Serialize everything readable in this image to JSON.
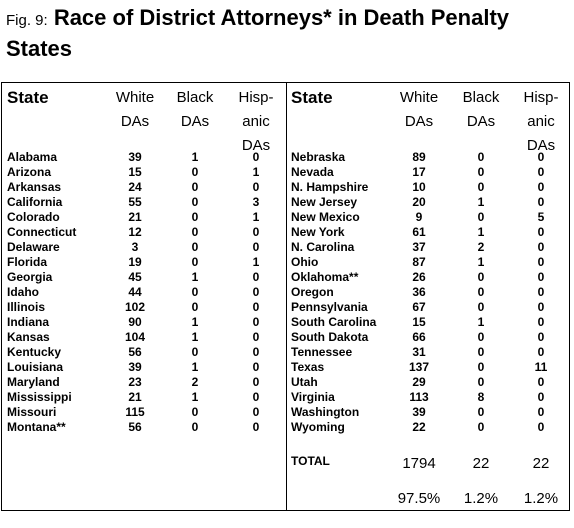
{
  "title": {
    "fig": "Fig. 9:",
    "text": "Race of District Attorneys* in Death Penalty States"
  },
  "headers": {
    "state": "State",
    "white": [
      "White",
      "DAs"
    ],
    "black": [
      "Black",
      "DAs"
    ],
    "hispanic": [
      "Hisp-",
      "anic",
      "DAs"
    ]
  },
  "left_rows": [
    {
      "state": "Alabama",
      "white": "39",
      "black": "1",
      "hispanic": "0"
    },
    {
      "state": "Arizona",
      "white": "15",
      "black": "0",
      "hispanic": "1"
    },
    {
      "state": "Arkansas",
      "white": "24",
      "black": "0",
      "hispanic": "0"
    },
    {
      "state": "California",
      "white": "55",
      "black": "0",
      "hispanic": "3"
    },
    {
      "state": "Colorado",
      "white": "21",
      "black": "0",
      "hispanic": "1"
    },
    {
      "state": "Connecticut",
      "white": "12",
      "black": "0",
      "hispanic": "0"
    },
    {
      "state": "Delaware",
      "white": "3",
      "black": "0",
      "hispanic": "0"
    },
    {
      "state": "Florida",
      "white": "19",
      "black": "0",
      "hispanic": "1"
    },
    {
      "state": "Georgia",
      "white": "45",
      "black": "1",
      "hispanic": "0"
    },
    {
      "state": "Idaho",
      "white": "44",
      "black": "0",
      "hispanic": "0"
    },
    {
      "state": "Illinois",
      "white": "102",
      "black": "0",
      "hispanic": "0"
    },
    {
      "state": "Indiana",
      "white": "90",
      "black": "1",
      "hispanic": "0"
    },
    {
      "state": "Kansas",
      "white": "104",
      "black": "1",
      "hispanic": "0"
    },
    {
      "state": "Kentucky",
      "white": "56",
      "black": "0",
      "hispanic": "0"
    },
    {
      "state": "Louisiana",
      "white": "39",
      "black": "1",
      "hispanic": "0"
    },
    {
      "state": "Maryland",
      "white": "23",
      "black": "2",
      "hispanic": "0"
    },
    {
      "state": "Mississippi",
      "white": "21",
      "black": "1",
      "hispanic": "0"
    },
    {
      "state": "Missouri",
      "white": "115",
      "black": "0",
      "hispanic": "0"
    },
    {
      "state": "Montana**",
      "white": "56",
      "black": "0",
      "hispanic": "0"
    }
  ],
  "right_rows": [
    {
      "state": "Nebraska",
      "white": "89",
      "black": "0",
      "hispanic": "0"
    },
    {
      "state": "Nevada",
      "white": "17",
      "black": "0",
      "hispanic": "0"
    },
    {
      "state": "N. Hampshire",
      "white": "10",
      "black": "0",
      "hispanic": "0"
    },
    {
      "state": "New Jersey",
      "white": "20",
      "black": "1",
      "hispanic": "0"
    },
    {
      "state": "New Mexico",
      "white": "9",
      "black": "0",
      "hispanic": "5"
    },
    {
      "state": "New York",
      "white": "61",
      "black": "1",
      "hispanic": "0"
    },
    {
      "state": "N. Carolina",
      "white": "37",
      "black": "2",
      "hispanic": "0"
    },
    {
      "state": "Ohio",
      "white": "87",
      "black": "1",
      "hispanic": "0"
    },
    {
      "state": "Oklahoma**",
      "white": "26",
      "black": "0",
      "hispanic": "0"
    },
    {
      "state": "Oregon",
      "white": "36",
      "black": "0",
      "hispanic": "0"
    },
    {
      "state": "Pennsylvania",
      "white": "67",
      "black": "0",
      "hispanic": "0"
    },
    {
      "state": "South Carolina",
      "white": "15",
      "black": "1",
      "hispanic": "0"
    },
    {
      "state": "South Dakota",
      "white": "66",
      "black": "0",
      "hispanic": "0"
    },
    {
      "state": "Tennessee",
      "white": "31",
      "black": "0",
      "hispanic": "0"
    },
    {
      "state": "Texas",
      "white": "137",
      "black": "0",
      "hispanic": "11"
    },
    {
      "state": "Utah",
      "white": "29",
      "black": "0",
      "hispanic": "0"
    },
    {
      "state": "Virginia",
      "white": "113",
      "black": "8",
      "hispanic": "0"
    },
    {
      "state": "Washington",
      "white": "39",
      "black": "0",
      "hispanic": "0"
    },
    {
      "state": "Wyoming",
      "white": "22",
      "black": "0",
      "hispanic": "0"
    }
  ],
  "total": {
    "label": "TOTAL",
    "white": "1794",
    "black": "22",
    "hispanic": "22",
    "white_pct": "97.5%",
    "black_pct": "1.2%",
    "hispanic_pct": "1.2%"
  }
}
